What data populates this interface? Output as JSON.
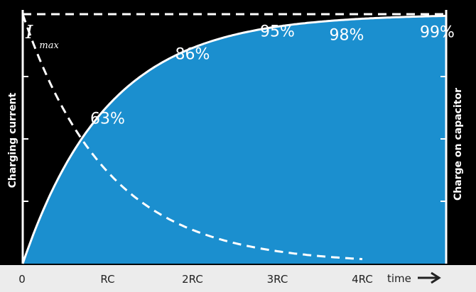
{
  "chart_data": {
    "type": "line",
    "left_axis_label": "Charging current",
    "right_axis_label": "Charge on capacitor",
    "x_axis_label": "time",
    "x_ticks": [
      "0",
      "RC",
      "2RC",
      "3RC",
      "4RC"
    ],
    "x_tick_values": [
      0,
      1,
      2,
      3,
      4
    ],
    "xlim": [
      0,
      5
    ],
    "ylim": [
      0,
      1
    ],
    "current_label": {
      "main": "I",
      "sub": "max"
    },
    "series": [
      {
        "name": "Charge on capacitor",
        "style": "solid-area",
        "formula": "1 - exp(-t/RC)",
        "points": [
          [
            0,
            0
          ],
          [
            1,
            0.63
          ],
          [
            2,
            0.86
          ],
          [
            3,
            0.95
          ],
          [
            4,
            0.98
          ],
          [
            5,
            0.99
          ]
        ]
      },
      {
        "name": "Charging current",
        "style": "dashed",
        "formula": "exp(-t/RC)",
        "points": [
          [
            0,
            1
          ],
          [
            1,
            0.37
          ],
          [
            2,
            0.14
          ],
          [
            3,
            0.05
          ],
          [
            4,
            0.02
          ],
          [
            5,
            0.01
          ]
        ]
      }
    ],
    "data_labels": [
      {
        "x": 1,
        "text": "63%"
      },
      {
        "x": 2,
        "text": "86%"
      },
      {
        "x": 3,
        "text": "95%"
      },
      {
        "x": 4,
        "text": "98%"
      },
      {
        "x": 5,
        "text": "99%"
      }
    ],
    "grid": false
  },
  "colors": {
    "background": "#000000",
    "fill": "#1b8fcf",
    "curve": "#ffffff",
    "footer": "#ececec",
    "footer_text": "#222222"
  }
}
